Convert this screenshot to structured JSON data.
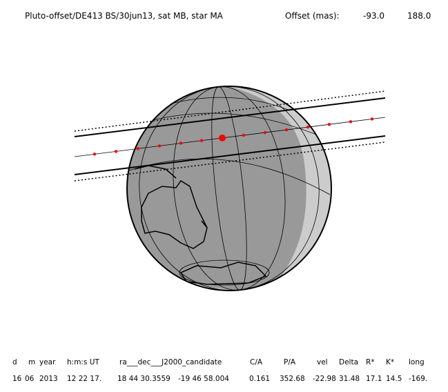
{
  "header": {
    "title": "Pluto-offset/DE413 BS/30jun13, sat MB, star MA",
    "offset_label": "Offset (mas):",
    "offset_x": "-93.0",
    "offset_y": "188.0"
  },
  "table": {
    "columns": [
      "d",
      "m",
      "year",
      "h:m:s UT",
      "ra___dec___J2000_candidate",
      "C/A",
      "P/A",
      "vel",
      "Delta",
      "R*",
      "K*",
      "long"
    ],
    "rows": [
      [
        "16",
        "06",
        "2013",
        "12 22 17.",
        "18 44 30.3559",
        "-19 46 58.004",
        "0.161",
        "352.68",
        "-22.98",
        "31.48",
        "17.1",
        "14.5",
        "-169."
      ]
    ]
  }
}
